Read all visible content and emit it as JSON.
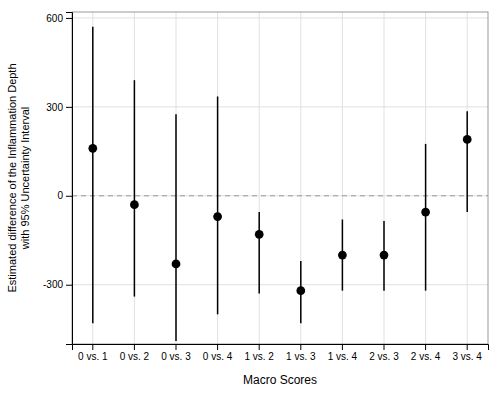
{
  "chart_data": {
    "type": "errorbar",
    "xlabel": "Macro Scores",
    "ylabel": "Estimated difference of the Inflammation Depth\nwith 95% Uncertainty Interval",
    "categories": [
      "0 vs. 1",
      "0 vs. 2",
      "0 vs. 3",
      "0 vs. 4",
      "1 vs. 2",
      "1 vs. 3",
      "1 vs. 4",
      "2 vs. 3",
      "2 vs. 4",
      "3 vs. 4"
    ],
    "values": [
      160,
      -30,
      -230,
      -70,
      -130,
      -320,
      -200,
      -200,
      -55,
      190
    ],
    "lower": [
      -430,
      -340,
      -490,
      -400,
      -330,
      -430,
      -320,
      -320,
      -320,
      -55
    ],
    "upper": [
      570,
      390,
      275,
      335,
      -55,
      -220,
      -80,
      -85,
      175,
      285
    ],
    "hline": 0,
    "ylim": [
      -500,
      620
    ],
    "yticks": [
      -300,
      0,
      300,
      600
    ],
    "color": "#000000",
    "marker": "circle",
    "grid": true
  }
}
